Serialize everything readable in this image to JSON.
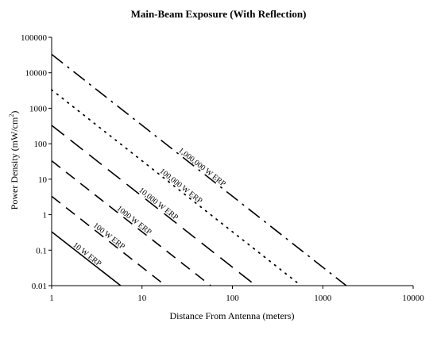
{
  "chart_data": {
    "type": "line",
    "title": "Main-Beam Exposure (With Reflection)",
    "xlabel": "Distance From Antenna (meters)",
    "ylabel_main": "Power Density (mW/cm",
    "ylabel_sup": "2",
    "ylabel_tail": ")",
    "x_scale": "log",
    "y_scale": "log",
    "xlim": [
      1,
      10000
    ],
    "ylim": [
      0.01,
      100000
    ],
    "x_ticks": [
      1,
      10,
      100,
      1000,
      10000
    ],
    "x_tick_labels": [
      "1",
      "10",
      "100",
      "1000",
      "10000"
    ],
    "y_ticks": [
      0.01,
      0.1,
      1,
      10,
      100,
      1000,
      10000,
      100000
    ],
    "y_tick_labels": [
      "0.01",
      "0.1",
      "1",
      "10",
      "100",
      "1000",
      "10000",
      "100000"
    ],
    "grid": false,
    "legend": "none (inline labels)",
    "series": [
      {
        "label": "10 W ERP",
        "x": [
          1,
          5.8
        ],
        "y": [
          0.33,
          0.01
        ],
        "dash": "solid"
      },
      {
        "label": "100 W ERP",
        "x": [
          1,
          18.2
        ],
        "y": [
          3.3,
          0.01
        ],
        "dash": "long"
      },
      {
        "label": "1000 W ERP",
        "x": [
          1,
          57.5
        ],
        "y": [
          33,
          0.01
        ],
        "dash": "long"
      },
      {
        "label": "10,000 W ERP",
        "x": [
          1,
          182
        ],
        "y": [
          330,
          0.01
        ],
        "dash": "longer"
      },
      {
        "label": "100,000 W ERP",
        "x": [
          1,
          575
        ],
        "y": [
          3300,
          0.01
        ],
        "dash": "dotted"
      },
      {
        "label": "1,000,000 W ERP",
        "x": [
          1,
          1820
        ],
        "y": [
          33000,
          0.01
        ],
        "dash": "dashdot"
      }
    ]
  }
}
